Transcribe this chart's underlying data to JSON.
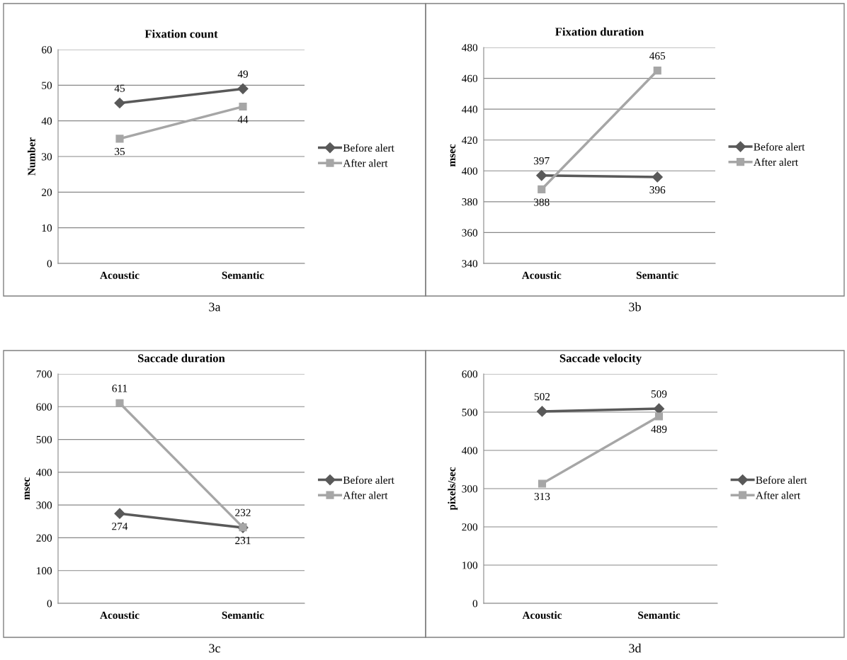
{
  "chart_data": [
    {
      "type": "line",
      "title": "Fixation count",
      "ylabel": "Number",
      "categories": [
        "Acoustic",
        "Semantic"
      ],
      "ylim": [
        0,
        60
      ],
      "yticks": [
        0,
        10,
        20,
        30,
        40,
        50,
        60
      ],
      "grid": "y",
      "legend": "right",
      "data_labels": true,
      "annotations": [
        "3a"
      ],
      "series": [
        {
          "name": "Before alert",
          "color": "#595959",
          "marker": "diamond",
          "values": [
            45,
            49
          ]
        },
        {
          "name": "After alert",
          "color": "#a6a6a6",
          "marker": "square",
          "values": [
            35,
            44
          ]
        }
      ]
    },
    {
      "type": "line",
      "title": "Fixation duration",
      "ylabel": "msec",
      "categories": [
        "Acoustic",
        "Semantic"
      ],
      "ylim": [
        340,
        480
      ],
      "yticks": [
        340,
        360,
        380,
        400,
        420,
        440,
        460,
        480
      ],
      "grid": "y",
      "legend": "right",
      "data_labels": true,
      "annotations": [
        "3b"
      ],
      "series": [
        {
          "name": "Before alert",
          "color": "#595959",
          "marker": "diamond",
          "values": [
            397,
            396
          ]
        },
        {
          "name": "After alert",
          "color": "#a6a6a6",
          "marker": "square",
          "values": [
            388,
            465
          ]
        }
      ]
    },
    {
      "type": "line",
      "title": "Saccade duration",
      "ylabel": "msec",
      "categories": [
        "Acoustic",
        "Semantic"
      ],
      "ylim": [
        0,
        700
      ],
      "yticks": [
        0,
        100,
        200,
        300,
        400,
        500,
        600,
        700
      ],
      "grid": "y",
      "legend": "right",
      "data_labels": true,
      "annotations": [
        "3c"
      ],
      "series": [
        {
          "name": "Before alert",
          "color": "#595959",
          "marker": "diamond",
          "values": [
            274,
            231
          ]
        },
        {
          "name": "After alert",
          "color": "#a6a6a6",
          "marker": "square",
          "values": [
            611,
            232
          ]
        }
      ]
    },
    {
      "type": "line",
      "title": "Saccade velocity",
      "ylabel": "pixels/sec",
      "categories": [
        "Acoustic",
        "Semantic"
      ],
      "ylim": [
        0,
        600
      ],
      "yticks": [
        0,
        100,
        200,
        300,
        400,
        500,
        600
      ],
      "grid": "y",
      "legend": "right",
      "data_labels": true,
      "annotations": [
        "3d"
      ],
      "series": [
        {
          "name": "Before alert",
          "color": "#595959",
          "marker": "diamond",
          "values": [
            502,
            509
          ]
        },
        {
          "name": "After alert",
          "color": "#a6a6a6",
          "marker": "square",
          "values": [
            313,
            489
          ]
        }
      ]
    }
  ]
}
